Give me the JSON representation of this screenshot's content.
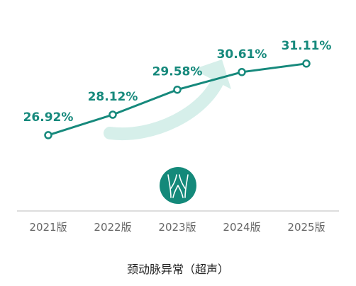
{
  "chart_data": {
    "type": "line",
    "categories": [
      "2021版",
      "2022版",
      "2023版",
      "2024版",
      "2025版"
    ],
    "series": [
      {
        "values": [
          26.92,
          28.12,
          29.58,
          30.61,
          31.11
        ],
        "labels": [
          "26.92%",
          "28.12%",
          "29.58%",
          "30.61%",
          "31.11%"
        ]
      }
    ],
    "title": "颈动脉异常（超声）",
    "ylim": [
      20,
      34
    ],
    "grid": false,
    "legend": "none",
    "colors": {
      "line": "#16897c",
      "label": "#16897c",
      "trend_arrow": "#d6efea",
      "icon_circle": "#14897a",
      "axis": "#dddddd"
    },
    "icon": "carotid-artery-icon"
  }
}
